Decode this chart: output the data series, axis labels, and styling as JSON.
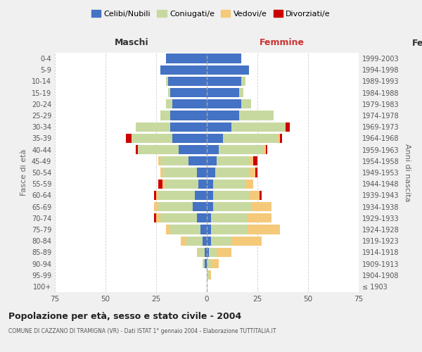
{
  "age_groups": [
    "100+",
    "95-99",
    "90-94",
    "85-89",
    "80-84",
    "75-79",
    "70-74",
    "65-69",
    "60-64",
    "55-59",
    "50-54",
    "45-49",
    "40-44",
    "35-39",
    "30-34",
    "25-29",
    "20-24",
    "15-19",
    "10-14",
    "5-9",
    "0-4"
  ],
  "birth_years": [
    "≤ 1903",
    "1904-1908",
    "1909-1913",
    "1914-1918",
    "1919-1923",
    "1924-1928",
    "1929-1933",
    "1934-1938",
    "1939-1943",
    "1944-1948",
    "1949-1953",
    "1954-1958",
    "1959-1963",
    "1964-1968",
    "1969-1973",
    "1974-1978",
    "1979-1983",
    "1984-1988",
    "1989-1993",
    "1994-1998",
    "1999-2003"
  ],
  "colors": {
    "celibe": "#4472c4",
    "coniugato": "#c8d9a0",
    "vedovo": "#f5c97a",
    "divorziato": "#cc0000"
  },
  "maschi": {
    "celibe": [
      0,
      0,
      1,
      1,
      2,
      3,
      5,
      7,
      6,
      4,
      5,
      9,
      14,
      17,
      18,
      18,
      17,
      18,
      19,
      23,
      20
    ],
    "coniugato": [
      0,
      0,
      1,
      3,
      8,
      15,
      18,
      17,
      18,
      17,
      17,
      14,
      20,
      20,
      17,
      5,
      3,
      1,
      1,
      0,
      0
    ],
    "vedovo": [
      0,
      0,
      0,
      1,
      3,
      2,
      2,
      2,
      1,
      1,
      1,
      1,
      0,
      0,
      0,
      0,
      0,
      0,
      0,
      0,
      0
    ],
    "divorziato": [
      0,
      0,
      0,
      0,
      0,
      0,
      1,
      0,
      1,
      2,
      0,
      0,
      1,
      3,
      0,
      0,
      0,
      0,
      0,
      0,
      0
    ]
  },
  "femmine": {
    "nubile": [
      0,
      0,
      0,
      1,
      2,
      2,
      2,
      3,
      3,
      3,
      4,
      5,
      6,
      8,
      12,
      16,
      17,
      16,
      17,
      21,
      17
    ],
    "coniugata": [
      0,
      1,
      2,
      4,
      10,
      18,
      18,
      19,
      18,
      16,
      17,
      16,
      22,
      27,
      27,
      17,
      5,
      2,
      2,
      0,
      0
    ],
    "vedova": [
      0,
      1,
      4,
      7,
      15,
      16,
      12,
      10,
      5,
      4,
      3,
      2,
      1,
      1,
      0,
      0,
      0,
      0,
      0,
      0,
      0
    ],
    "divorziata": [
      0,
      0,
      0,
      0,
      0,
      0,
      0,
      0,
      1,
      0,
      1,
      2,
      1,
      1,
      2,
      0,
      0,
      0,
      0,
      0,
      0
    ]
  },
  "xlim": 75,
  "title": "Popolazione per età, sesso e stato civile - 2004",
  "subtitle": "COMUNE DI CAZZANO DI TRAMIGNA (VR) - Dati ISTAT 1° gennaio 2004 - Elaborazione TUTTITALIA.IT",
  "ylabel": "Fasce di età",
  "ylabel2": "Anni di nascita",
  "legend_labels": [
    "Celibi/Nubili",
    "Coniugati/e",
    "Vedovi/e",
    "Divorziati/e"
  ],
  "bg_color": "#f0f0f0",
  "plot_bg": "#ffffff",
  "grid_color": "#cccccc"
}
